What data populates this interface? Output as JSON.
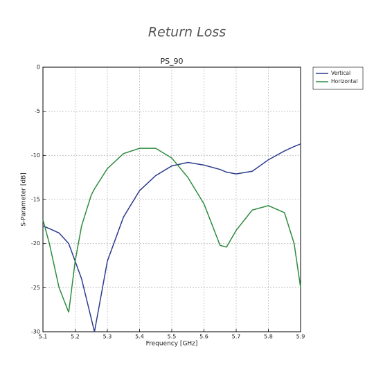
{
  "chart_data": {
    "type": "line",
    "title": "Return Loss",
    "subtitle": "PS_90",
    "x_label": "Frequency [GHz]",
    "y_label": "S-Parameter [dB]",
    "x": [
      5.1,
      5.12,
      5.15,
      5.18,
      5.2,
      5.22,
      5.25,
      5.26,
      5.3,
      5.35,
      5.4,
      5.45,
      5.5,
      5.55,
      5.6,
      5.65,
      5.67,
      5.7,
      5.75,
      5.8,
      5.85,
      5.88,
      5.9
    ],
    "series": [
      {
        "name": "Vertical",
        "color": "#2b3a8f",
        "values": [
          -18,
          -18.3,
          -18.8,
          -20,
          -22,
          -24,
          -28.5,
          -30,
          -22,
          -17,
          -14,
          -12.3,
          -11.2,
          -10.8,
          -11.1,
          -11.6,
          -11.9,
          -12.1,
          -11.8,
          -10.5,
          -9.5,
          -9,
          -8.7
        ]
      },
      {
        "name": "Horizontal",
        "color": "#2e8b3e",
        "values": [
          -17.3,
          -20,
          -25,
          -27.8,
          -22,
          -18,
          -14.5,
          -13.8,
          -11.5,
          -9.8,
          -9.2,
          -9.2,
          -10.3,
          -12.5,
          -15.5,
          -20.2,
          -20.4,
          -18.5,
          -16.2,
          -15.7,
          -16.5,
          -20,
          -25
        ]
      }
    ],
    "xlim": [
      5.1,
      5.9
    ],
    "xticks": [
      5.1,
      5.2,
      5.3,
      5.4,
      5.5,
      5.6,
      5.7,
      5.8,
      5.9
    ],
    "ylim": [
      -30,
      0
    ],
    "yticks": [
      -30,
      -25,
      -20,
      -15,
      -10,
      -5,
      0
    ],
    "grid": true,
    "legend": "outside-upper-right"
  }
}
